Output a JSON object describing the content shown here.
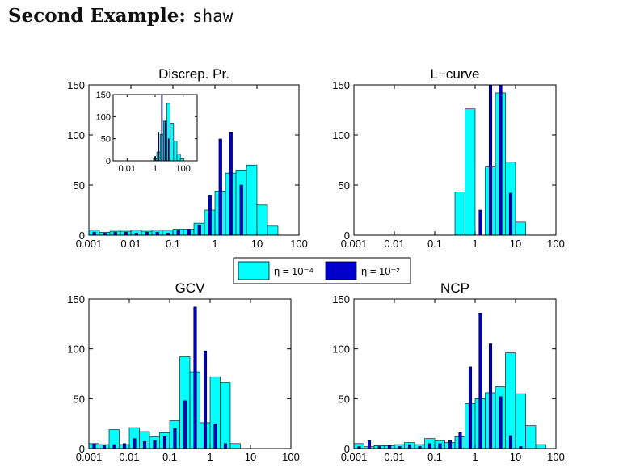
{
  "slide": {
    "title_prefix": "Second Example:",
    "title_mono": "shaw"
  },
  "colors": {
    "eta_1e_4": "#00ffff",
    "eta_1e_2": "#0000cc",
    "edge": "#000000"
  },
  "legend": {
    "items": [
      {
        "label": "η = 10⁻⁴",
        "color_key": "eta_1e_4"
      },
      {
        "label": "η = 10⁻²",
        "color_key": "eta_1e_2"
      }
    ]
  },
  "chart_data": [
    {
      "type": "bar",
      "title": "Discrep. Pr.",
      "xscale": "log",
      "xlim": [
        0.001,
        100
      ],
      "ylim": [
        0,
        150
      ],
      "xticks": [
        0.001,
        0.01,
        0.1,
        1,
        10,
        100
      ],
      "xtick_labels": [
        "0.001",
        "0.01",
        "0.1",
        "1",
        "10",
        "100"
      ],
      "yticks": [
        0,
        50,
        100,
        150
      ],
      "ytick_labels": [
        "0",
        "50",
        "100",
        "150"
      ],
      "series": [
        {
          "name": "η = 10⁻⁴",
          "color_key": "eta_1e_4",
          "values": [
            5,
            3,
            4,
            4,
            5,
            4,
            5,
            5,
            6,
            6,
            12,
            25,
            44,
            62,
            65,
            70,
            30,
            9,
            0,
            0
          ]
        },
        {
          "name": "η = 10⁻²",
          "color_key": "eta_1e_2",
          "values": [
            3,
            2,
            3,
            3,
            2,
            3,
            3,
            2,
            5,
            6,
            10,
            40,
            96,
            103,
            50,
            0,
            0,
            0,
            0,
            0
          ]
        }
      ],
      "inset": {
        "xscale": "log",
        "xlim": [
          0.001,
          1000
        ],
        "ylim": [
          0,
          150
        ],
        "xticks": [
          0.01,
          1,
          100
        ],
        "xtick_labels": [
          "0.01",
          "1",
          "100"
        ],
        "yticks": [
          0,
          50,
          100,
          150
        ],
        "ytick_labels": [
          "0",
          "50",
          "100",
          "150"
        ],
        "series": [
          {
            "name": "η = 10⁻⁴",
            "color_key": "eta_1e_4",
            "values": [
              0,
              0,
              0,
              0,
              0,
              0,
              0,
              0,
              0,
              0,
              0,
              0,
              5,
              20,
              60,
              90,
              130,
              85,
              45,
              15,
              5,
              0,
              0,
              0,
              0
            ]
          },
          {
            "name": "η = 10⁻²",
            "color_key": "eta_1e_2",
            "values": [
              0,
              0,
              0,
              0,
              0,
              0,
              0,
              0,
              0,
              0,
              0,
              0,
              10,
              65,
              150,
              90,
              50,
              0,
              0,
              0,
              0,
              0,
              0,
              0,
              0
            ]
          }
        ]
      }
    },
    {
      "type": "bar",
      "title": "L−curve",
      "xscale": "log",
      "xlim": [
        0.001,
        100
      ],
      "ylim": [
        0,
        150
      ],
      "xticks": [
        0.001,
        0.01,
        0.1,
        1,
        10,
        100
      ],
      "xtick_labels": [
        "0.001",
        "0.01",
        "0.1",
        "1",
        "10",
        "100"
      ],
      "yticks": [
        0,
        50,
        100,
        150
      ],
      "ytick_labels": [
        "0",
        "50",
        "100",
        "150"
      ],
      "series": [
        {
          "name": "η = 10⁻⁴",
          "color_key": "eta_1e_4",
          "values": [
            0,
            0,
            0,
            0,
            0,
            0,
            0,
            0,
            0,
            0,
            43,
            126,
            0,
            68,
            142,
            73,
            13,
            0,
            0,
            0
          ]
        },
        {
          "name": "η = 10⁻²",
          "color_key": "eta_1e_2",
          "values": [
            0,
            0,
            0,
            0,
            0,
            0,
            0,
            0,
            0,
            0,
            0,
            0,
            25,
            150,
            150,
            42,
            0,
            0,
            0,
            0
          ]
        }
      ]
    },
    {
      "type": "bar",
      "title": "GCV",
      "xscale": "log",
      "xlim": [
        0.001,
        100
      ],
      "ylim": [
        0,
        150
      ],
      "xticks": [
        0.001,
        0.01,
        0.1,
        1,
        10,
        100
      ],
      "xtick_labels": [
        "0.001",
        "0.01",
        "0.1",
        "1",
        "10",
        "100"
      ],
      "yticks": [
        0,
        50,
        100,
        150
      ],
      "ytick_labels": [
        "0",
        "50",
        "100",
        "150"
      ],
      "series": [
        {
          "name": "η = 10⁻⁴",
          "color_key": "eta_1e_4",
          "values": [
            5,
            4,
            19,
            4,
            21,
            17,
            12,
            16,
            28,
            92,
            77,
            26,
            72,
            66,
            5,
            0,
            0,
            0,
            0,
            0
          ]
        },
        {
          "name": "η = 10⁻²",
          "color_key": "eta_1e_2",
          "values": [
            5,
            3,
            4,
            5,
            10,
            7,
            8,
            12,
            20,
            48,
            142,
            98,
            25,
            5,
            0,
            0,
            0,
            0,
            0,
            0
          ]
        }
      ]
    },
    {
      "type": "bar",
      "title": "NCP",
      "xscale": "log",
      "xlim": [
        0.001,
        100
      ],
      "ylim": [
        0,
        150
      ],
      "xticks": [
        0.001,
        0.01,
        0.1,
        1,
        10,
        100
      ],
      "xtick_labels": [
        "0.001",
        "0.01",
        "0.1",
        "1",
        "10",
        "100"
      ],
      "yticks": [
        0,
        50,
        100,
        150
      ],
      "ytick_labels": [
        "0",
        "50",
        "100",
        "150"
      ],
      "series": [
        {
          "name": "η = 10⁻⁴",
          "color_key": "eta_1e_4",
          "values": [
            5,
            2,
            3,
            3,
            4,
            6,
            4,
            10,
            8,
            6,
            12,
            45,
            50,
            56,
            62,
            96,
            55,
            23,
            4,
            0
          ]
        },
        {
          "name": "η = 10⁻²",
          "color_key": "eta_1e_2",
          "values": [
            2,
            8,
            2,
            3,
            2,
            4,
            2,
            5,
            5,
            8,
            16,
            82,
            136,
            105,
            52,
            13,
            2,
            0,
            0,
            0
          ]
        }
      ]
    }
  ]
}
